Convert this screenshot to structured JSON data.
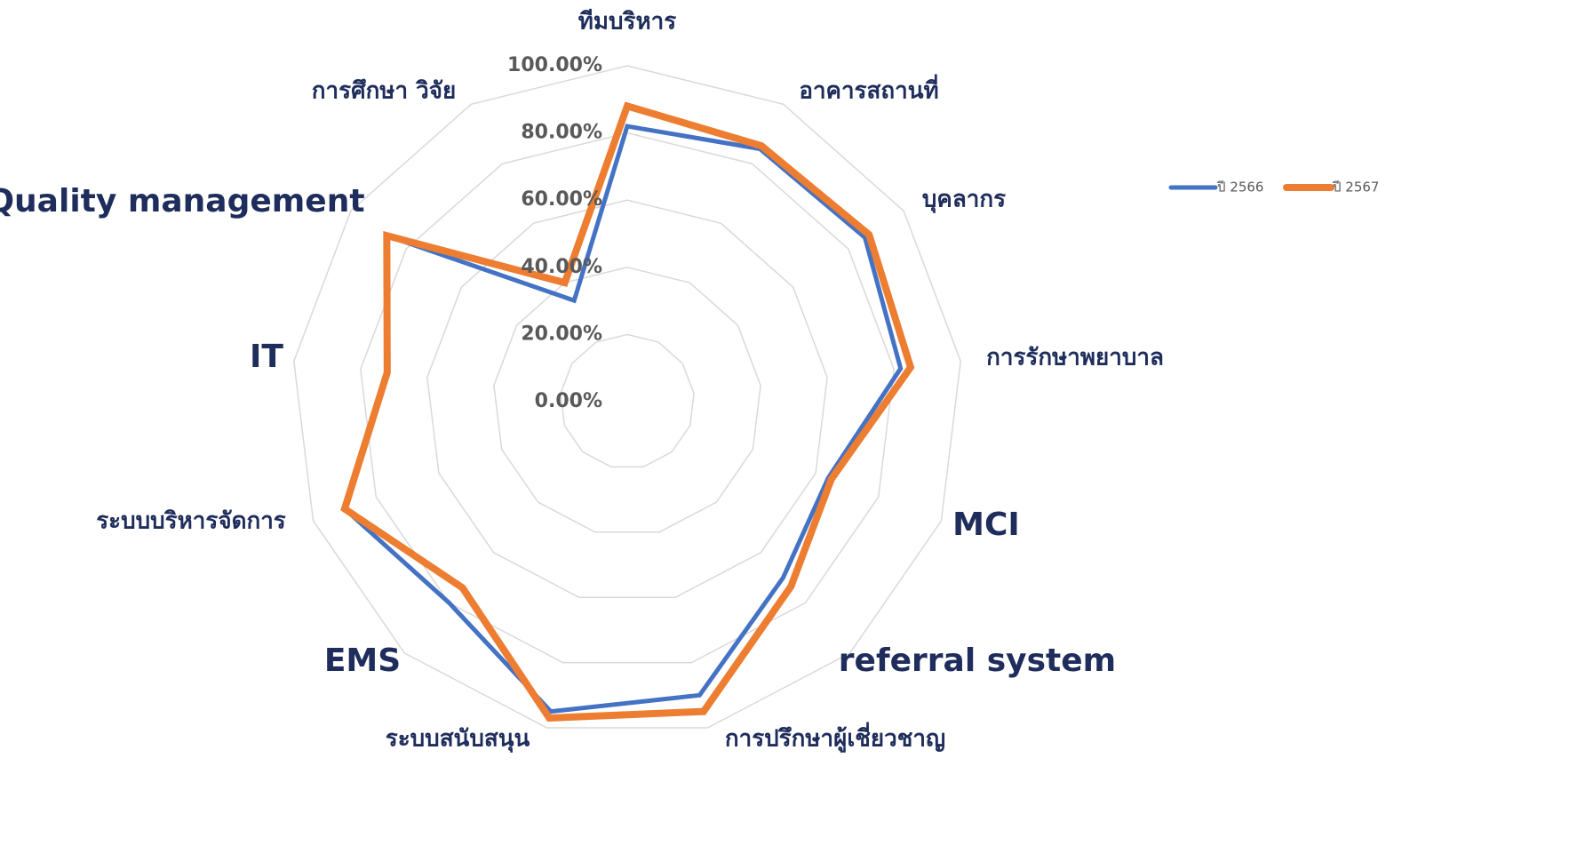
{
  "chart_data": {
    "type": "radar",
    "categories": [
      "ทีมบริหาร",
      "อาคารสถานที่",
      "บุคลากร",
      "การรักษาพยาบาล",
      "MCI",
      "referral system",
      "การปรึกษาผู้เชี่ยวชาญ",
      "ระบบสนับสนุน",
      "EMS",
      "ระบบบริหารจัดการ",
      "IT",
      "Quality management",
      "การศึกษา วิจัย"
    ],
    "series": [
      {
        "name": "ปี 2566",
        "color": "#4472C4",
        "values": [
          82,
          85,
          86,
          82,
          64,
          70,
          90,
          95,
          80,
          90,
          72,
          87,
          34
        ]
      },
      {
        "name": "ปี 2567",
        "color": "#ED7D31",
        "values": [
          88,
          86,
          87.5,
          85,
          65,
          73.5,
          95,
          97,
          74,
          90,
          72,
          87,
          40
        ]
      }
    ],
    "ylim": [
      0,
      100
    ],
    "yticks": [
      {
        "value": 0,
        "label": "0.00%"
      },
      {
        "value": 20,
        "label": "20.00%"
      },
      {
        "value": 40,
        "label": "40.00%"
      },
      {
        "value": 60,
        "label": "60.00%"
      },
      {
        "value": 80,
        "label": "80.00%"
      },
      {
        "value": 100,
        "label": "100.00%"
      }
    ],
    "grid": true,
    "legend": "top-right"
  }
}
